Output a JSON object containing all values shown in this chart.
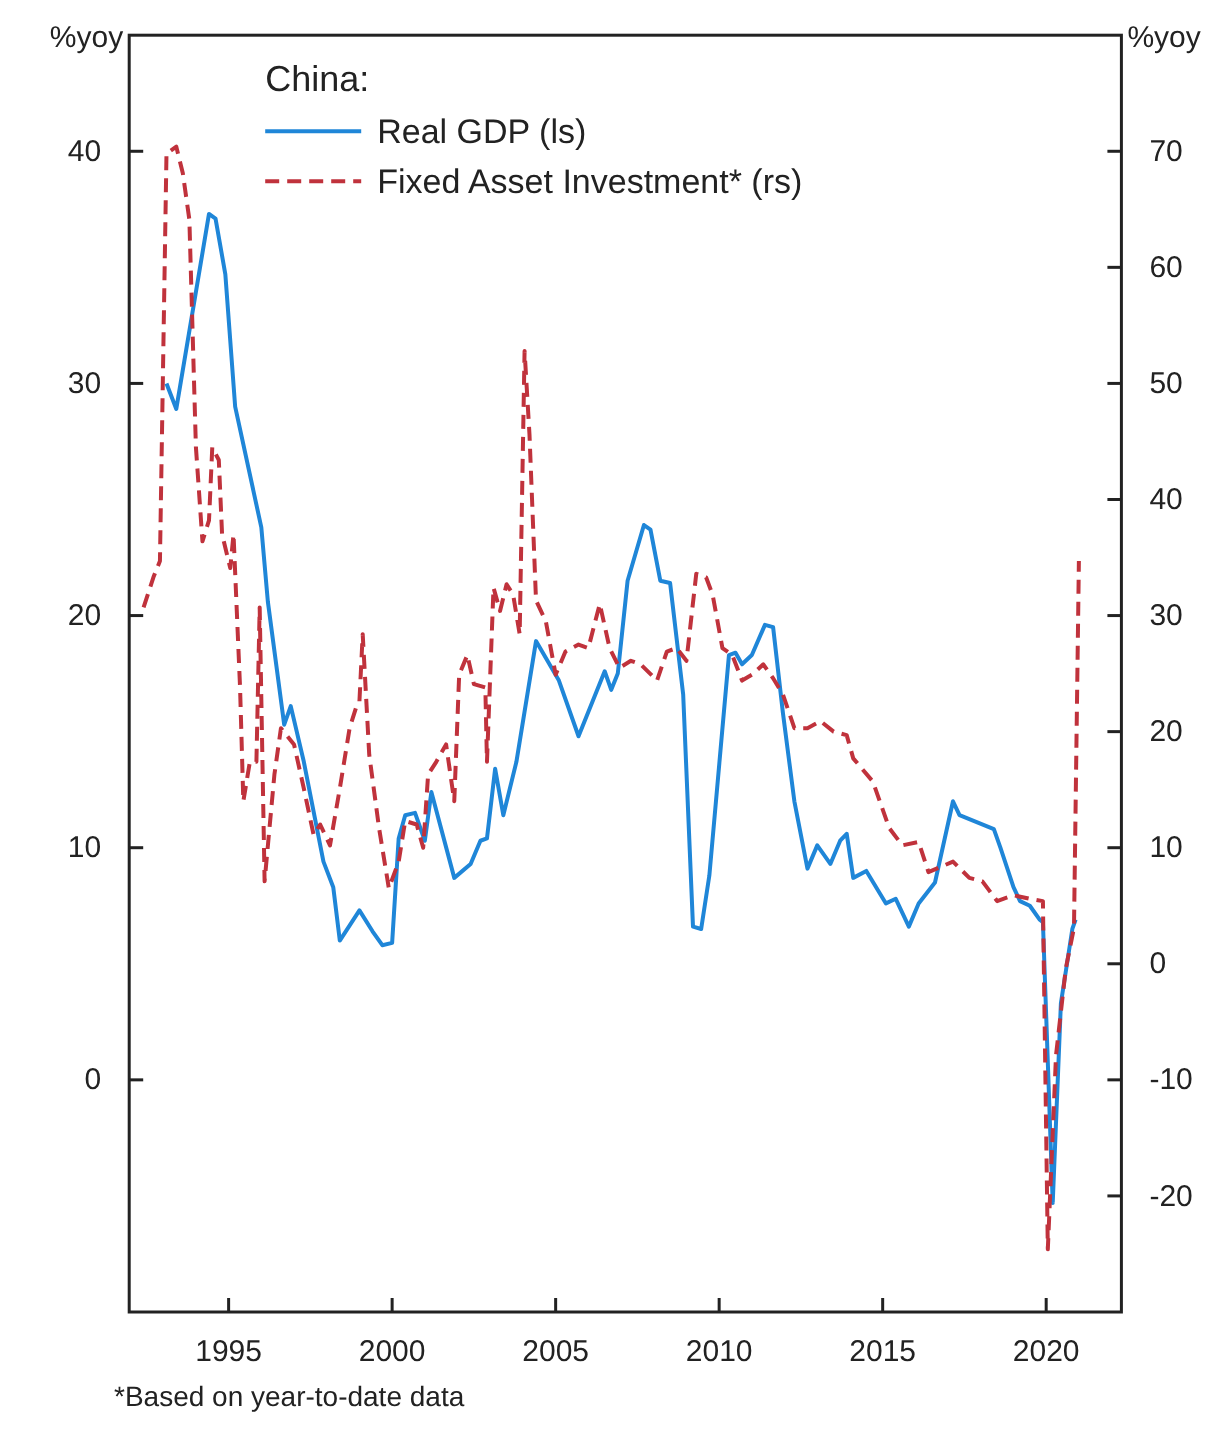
{
  "chart_data": {
    "type": "line",
    "ylabel": "%yoy",
    "y2label": "%yoy",
    "legend_title": "China:",
    "legend": "top left",
    "grid": false,
    "xlim": [
      1991.96,
      2022.3
    ],
    "xticks": [
      1995,
      2000,
      2005,
      2010,
      2015,
      2020
    ],
    "ylim": [
      -10,
      45
    ],
    "yticks": [
      0,
      10,
      20,
      30,
      40
    ],
    "y2lim": [
      -30,
      80
    ],
    "y2ticks": [
      -20,
      -10,
      0,
      10,
      20,
      30,
      40,
      50,
      60,
      70
    ],
    "annotations": [
      "*Based on year-to-date data"
    ],
    "series": [
      {
        "name": "Real GDP (ls)",
        "color": "#1f86d8",
        "line_style": "solid",
        "x": [
          1993.1,
          1993.4,
          1994.4,
          1994.6,
          1994.9,
          1995.2,
          1996.0,
          1996.2,
          1996.7,
          1996.9,
          1997.3,
          1997.9,
          1998.2,
          1998.4,
          1999.0,
          1999.4,
          1999.7,
          2000.0,
          2000.2,
          2000.4,
          2000.7,
          2001.0,
          2001.2,
          2001.9,
          2002.4,
          2002.7,
          2002.9,
          2003.15,
          2003.4,
          2003.8,
          2004.4,
          2005.1,
          2005.7,
          2006.5,
          2006.7,
          2006.9,
          2007.2,
          2007.7,
          2007.9,
          2008.2,
          2008.5,
          2008.9,
          2009.2,
          2009.45,
          2009.7,
          2010.3,
          2010.5,
          2010.7,
          2011.0,
          2011.4,
          2011.65,
          2011.95,
          2012.3,
          2012.7,
          2013.0,
          2013.4,
          2013.7,
          2013.9,
          2014.1,
          2014.5,
          2015.1,
          2015.4,
          2015.8,
          2016.1,
          2016.6,
          2017.15,
          2017.35,
          2018.4,
          2018.6,
          2019.0,
          2019.2,
          2019.5,
          2019.8,
          2019.9,
          2020.2,
          2020.45,
          2020.8,
          2020.9
        ],
        "values": [
          30.0,
          28.9,
          37.3,
          37.1,
          34.7,
          29.0,
          23.8,
          20.6,
          15.3,
          16.1,
          13.7,
          9.4,
          8.3,
          6.0,
          7.3,
          6.4,
          5.8,
          5.9,
          10.4,
          11.4,
          11.5,
          10.3,
          12.4,
          8.7,
          9.3,
          10.3,
          10.4,
          13.4,
          11.4,
          13.7,
          18.9,
          17.2,
          14.8,
          17.6,
          16.8,
          17.5,
          21.5,
          23.9,
          23.7,
          21.5,
          21.4,
          16.6,
          6.6,
          6.5,
          8.8,
          18.3,
          18.4,
          17.9,
          18.3,
          19.6,
          19.5,
          15.8,
          12.0,
          9.1,
          10.1,
          9.3,
          10.3,
          10.6,
          8.7,
          9.0,
          7.6,
          7.8,
          6.6,
          7.6,
          8.5,
          12.0,
          11.4,
          10.8,
          10.0,
          8.3,
          7.7,
          7.5,
          6.9,
          6.8,
          -5.3,
          3.3,
          6.5,
          6.9
        ]
      },
      {
        "name": "Fixed Asset Investment* (rs)",
        "color": "#c0323c",
        "line_style": "dashed",
        "axis": "y2",
        "x": [
          1992.4,
          1992.7,
          1992.9,
          1993.1,
          1993.4,
          1993.6,
          1993.8,
          1994.0,
          1994.2,
          1994.4,
          1994.5,
          1994.7,
          1994.8,
          1995.05,
          1995.15,
          1995.35,
          1995.45,
          1995.65,
          1995.85,
          1995.95,
          1996.1,
          1996.4,
          1996.6,
          1997.0,
          1997.3,
          1997.6,
          1997.8,
          1998.1,
          1998.4,
          1998.7,
          1998.9,
          1999.0,
          1999.1,
          1999.3,
          1999.6,
          1999.9,
          2000.2,
          2000.4,
          2000.75,
          2000.95,
          2001.1,
          2001.35,
          2001.65,
          2001.9,
          2002.05,
          2002.3,
          2002.5,
          2002.85,
          2002.9,
          2003.1,
          2003.3,
          2003.5,
          2003.7,
          2003.9,
          2004.05,
          2004.2,
          2004.4,
          2004.7,
          2005.0,
          2005.3,
          2005.7,
          2006.0,
          2006.35,
          2006.65,
          2006.95,
          2007.3,
          2007.6,
          2008.1,
          2008.4,
          2008.7,
          2009.0,
          2009.3,
          2009.6,
          2009.8,
          2010.1,
          2010.4,
          2010.7,
          2011.0,
          2011.35,
          2011.65,
          2011.95,
          2012.3,
          2012.7,
          2013.1,
          2013.5,
          2013.9,
          2014.1,
          2014.7,
          2015.2,
          2015.6,
          2016.1,
          2016.4,
          2017.15,
          2017.65,
          2018.05,
          2018.5,
          2019.0,
          2019.5,
          2019.9,
          2020.05,
          2020.3,
          2020.6,
          2020.85,
          2021.0
        ],
        "values": [
          30.7,
          33.3,
          34.7,
          69.8,
          70.4,
          68.1,
          64.1,
          44.5,
          36.4,
          38.2,
          44.5,
          43.4,
          37.0,
          34.1,
          37.0,
          23.8,
          14.0,
          17.4,
          17.4,
          30.7,
          7.1,
          16.3,
          20.3,
          18.9,
          15.1,
          11.1,
          12.0,
          10.2,
          15.1,
          20.3,
          22.1,
          22.6,
          28.4,
          18.0,
          11.7,
          6.5,
          8.8,
          12.3,
          12.0,
          10.0,
          16.3,
          17.4,
          18.9,
          14.0,
          24.9,
          26.6,
          24.1,
          23.8,
          17.4,
          32.4,
          30.4,
          32.7,
          31.8,
          28.4,
          52.8,
          45.6,
          31.3,
          29.5,
          24.9,
          26.9,
          27.5,
          27.2,
          31.0,
          27.2,
          25.5,
          26.1,
          25.8,
          24.4,
          26.9,
          27.2,
          26.1,
          33.6,
          33.3,
          31.8,
          27.2,
          26.6,
          24.4,
          24.9,
          25.8,
          24.6,
          23.2,
          20.3,
          20.3,
          20.9,
          20.0,
          19.7,
          17.7,
          15.7,
          11.7,
          10.2,
          10.5,
          7.9,
          8.8,
          7.4,
          7.1,
          5.4,
          5.9,
          5.6,
          5.4,
          -24.6,
          -7.9,
          -0.4,
          3.1,
          34.7
        ]
      }
    ]
  }
}
